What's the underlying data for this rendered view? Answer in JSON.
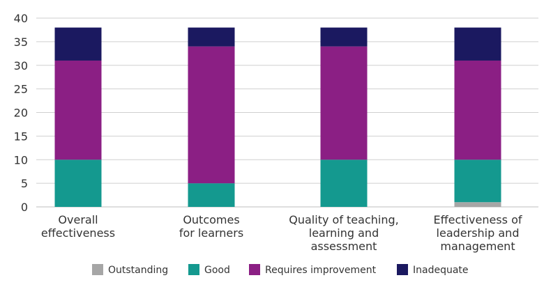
{
  "chart_data": {
    "type": "bar",
    "stacked": true,
    "categories": [
      [
        "Overall",
        "effectiveness"
      ],
      [
        "Outcomes",
        "for learners"
      ],
      [
        "Quality of teaching,",
        "learning and",
        "assessment"
      ],
      [
        "Effectiveness of",
        "leadership and",
        "management"
      ]
    ],
    "series": [
      {
        "name": "Outstanding",
        "color": "#a6a6a6",
        "values": [
          0,
          0,
          0,
          1
        ]
      },
      {
        "name": "Good",
        "color": "#14998f",
        "values": [
          10,
          5,
          10,
          9
        ]
      },
      {
        "name": "Requires improvement",
        "color": "#8b1f84",
        "values": [
          21,
          29,
          24,
          21
        ]
      },
      {
        "name": "Inadequate",
        "color": "#1b1960",
        "values": [
          7,
          4,
          4,
          7
        ]
      }
    ],
    "ylim": [
      0,
      40
    ],
    "yticks": [
      0,
      5,
      10,
      15,
      20,
      25,
      30,
      35,
      40
    ],
    "grid": true,
    "legend_position": "bottom"
  }
}
